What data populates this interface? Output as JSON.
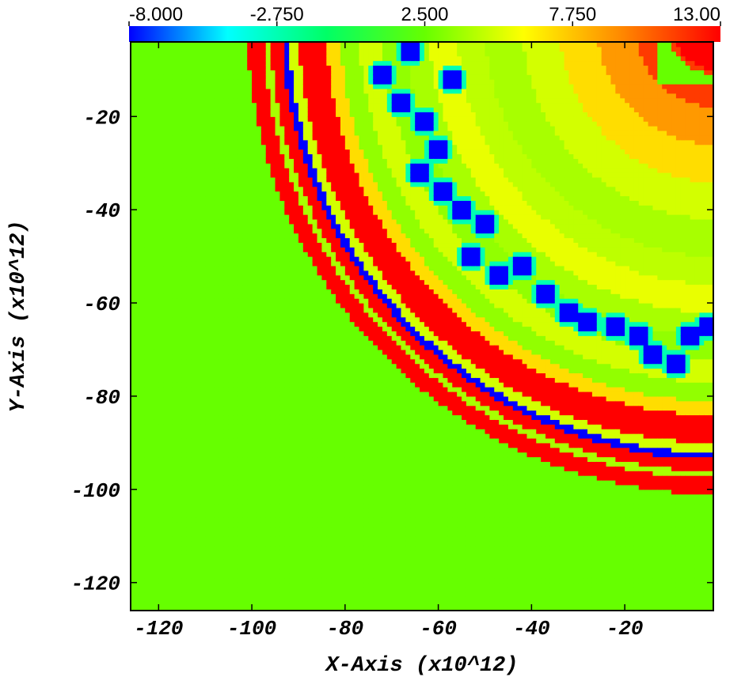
{
  "chart_data": {
    "type": "heatmap",
    "title": "",
    "xlabel": "X-Axis (x10^12)",
    "ylabel": "Y-Axis (x10^12)",
    "xlim": [
      -126,
      -1
    ],
    "ylim": [
      -126,
      -4
    ],
    "x_ticks": [
      -120,
      -100,
      -80,
      -60,
      -40,
      -20
    ],
    "y_ticks": [
      -20,
      -40,
      -60,
      -80,
      -100,
      -120
    ],
    "x_tick_labels": [
      "-120",
      "-100",
      "-80",
      "-60",
      "-40",
      "-20"
    ],
    "y_tick_labels": [
      "-20",
      "-40",
      "-60",
      "-80",
      "-100",
      "-120"
    ],
    "colorbar": {
      "placement": "top",
      "min": -8.0,
      "max": 13.0,
      "tick_values": [
        -8.0,
        -2.75,
        2.5,
        7.75,
        13.0
      ],
      "tick_labels": [
        "-8.000",
        "-2.750",
        "2.500",
        "7.750",
        "13.00"
      ],
      "colormap": [
        "#0000ff",
        "#00ffff",
        "#00ff66",
        "#66ff00",
        "#ffff00",
        "#ff8800",
        "#ff0000"
      ]
    },
    "background_value": 2.5,
    "field_center": [
      0,
      0
    ],
    "rings": [
      {
        "r_in": 0,
        "r_out": 10,
        "value": 13.0
      },
      {
        "r_in": 10,
        "r_out": 18,
        "value": 11.5
      },
      {
        "r_in": 18,
        "r_out": 26,
        "value": 9.0
      },
      {
        "r_in": 26,
        "r_out": 34,
        "value": 7.0
      },
      {
        "r_in": 34,
        "r_out": 42,
        "value": 5.0
      },
      {
        "r_in": 42,
        "r_out": 50,
        "value": 4.0
      },
      {
        "r_in": 50,
        "r_out": 56,
        "value": 4.5
      },
      {
        "r_in": 56,
        "r_out": 62,
        "value": 5.5
      },
      {
        "r_in": 62,
        "r_out": 67,
        "value": 4.0
      },
      {
        "r_in": 67,
        "r_out": 72,
        "value": 3.5
      },
      {
        "r_in": 72,
        "r_out": 77,
        "value": 5.0
      },
      {
        "r_in": 77,
        "r_out": 81,
        "value": 3.5
      },
      {
        "r_in": 81,
        "r_out": 84,
        "value": 7.0
      },
      {
        "r_in": 84,
        "r_out": 90,
        "value": 13.0
      },
      {
        "r_in": 90,
        "r_out": 92,
        "value": 5.0
      },
      {
        "r_in": 92,
        "r_out": 93.5,
        "value": -8.0
      },
      {
        "r_in": 93.5,
        "r_out": 96,
        "value": 13.0
      },
      {
        "r_in": 96,
        "r_out": 97.5,
        "value": 4.0
      },
      {
        "r_in": 97.5,
        "r_out": 101,
        "value": 13.0
      }
    ],
    "inner_corner_value": 2.5,
    "blobs": [
      {
        "x": -66,
        "y": -6,
        "value": -8.0
      },
      {
        "x": -72,
        "y": -11,
        "value": -8.0
      },
      {
        "x": -57,
        "y": -12,
        "value": -8.0
      },
      {
        "x": -68,
        "y": -17,
        "value": -8.0
      },
      {
        "x": -63,
        "y": -21,
        "value": -8.0
      },
      {
        "x": -60,
        "y": -27,
        "value": -8.0
      },
      {
        "x": -64,
        "y": -32,
        "value": -8.0
      },
      {
        "x": -59,
        "y": -36,
        "value": -8.0
      },
      {
        "x": -55,
        "y": -40,
        "value": -8.0
      },
      {
        "x": -50,
        "y": -43,
        "value": -8.0
      },
      {
        "x": -53,
        "y": -50,
        "value": -8.0
      },
      {
        "x": -47,
        "y": -54,
        "value": -8.0
      },
      {
        "x": -42,
        "y": -52,
        "value": -8.0
      },
      {
        "x": -37,
        "y": -58,
        "value": -8.0
      },
      {
        "x": -32,
        "y": -62,
        "value": -8.0
      },
      {
        "x": -28,
        "y": -64,
        "value": -8.0
      },
      {
        "x": -22,
        "y": -65,
        "value": -8.0
      },
      {
        "x": -17,
        "y": -67,
        "value": -8.0
      },
      {
        "x": -14,
        "y": -71,
        "value": -8.0
      },
      {
        "x": -9,
        "y": -73,
        "value": -8.0
      },
      {
        "x": -6,
        "y": -67,
        "value": -8.0
      },
      {
        "x": -2,
        "y": -65,
        "value": -8.0
      }
    ]
  }
}
